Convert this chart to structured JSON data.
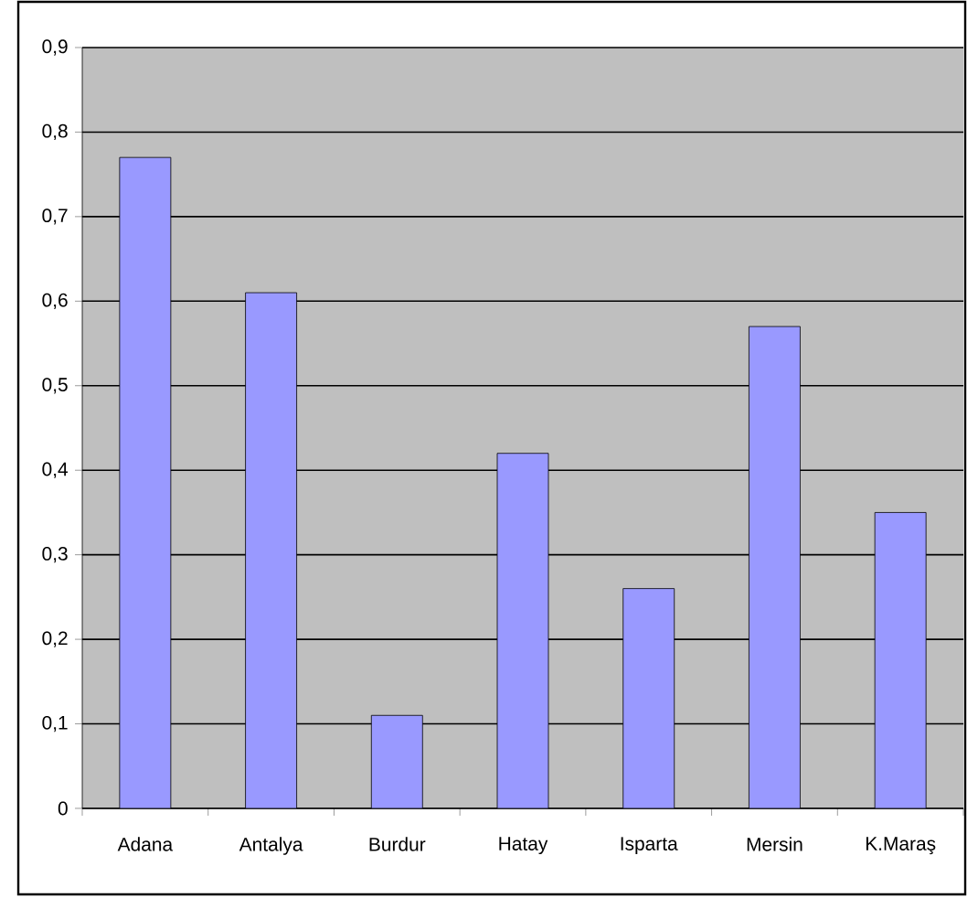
{
  "chart_data": {
    "type": "bar",
    "categories": [
      "Adana",
      "Antalya",
      "Burdur",
      "Hatay",
      "Isparta",
      "Mersin",
      "K.Maraş"
    ],
    "values": [
      0.77,
      0.61,
      0.11,
      0.42,
      0.26,
      0.57,
      0.35
    ],
    "color": "#9999ff",
    "ylim": [
      0,
      0.9
    ],
    "yticks": [
      0,
      {
        "value": 0.1,
        "label": "0,1"
      },
      {
        "value": 0.2,
        "label": "0,2"
      },
      {
        "value": 0.3,
        "label": "0,3"
      },
      {
        "value": 0.4,
        "label": "0,4"
      },
      {
        "value": 0.5,
        "label": "0,5"
      },
      {
        "value": 0.6,
        "label": "0,6"
      },
      {
        "value": 0.7,
        "label": "0,7"
      },
      {
        "value": 0.8,
        "label": "0,8"
      },
      {
        "value": 0.9,
        "label": "0,9"
      }
    ],
    "grid": "y"
  }
}
